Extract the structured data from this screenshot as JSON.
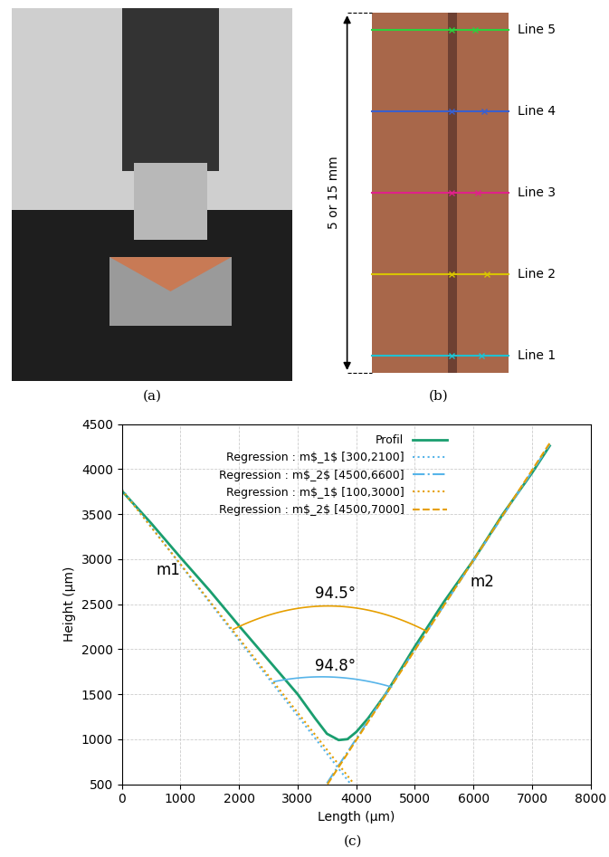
{
  "panels": {
    "a": {
      "caption": "(a)"
    },
    "b": {
      "caption": "(b)",
      "dimension": "5 or 15 mm",
      "lines": [
        {
          "label": "Line 5",
          "color": "#2bd13c"
        },
        {
          "label": "Line 4",
          "color": "#3a5fcd"
        },
        {
          "label": "Line 3",
          "color": "#e0218a"
        },
        {
          "label": "Line 2",
          "color": "#d8c400"
        },
        {
          "label": "Line 1",
          "color": "#20c0d0"
        }
      ]
    },
    "c": {
      "caption": "(c)"
    }
  },
  "chart_data": {
    "type": "line",
    "x_label": "Length (µm)",
    "y_label": "Height (µm)",
    "xlim": [
      0,
      8000
    ],
    "ylim": [
      500,
      4500
    ],
    "xticks": [
      0,
      1000,
      2000,
      3000,
      4000,
      5000,
      6000,
      7000,
      8000
    ],
    "yticks": [
      500,
      1000,
      1500,
      2000,
      2500,
      3000,
      3500,
      4000,
      4500
    ],
    "grid": true,
    "legend": "upper center",
    "series": [
      {
        "name": "Profil",
        "color": "#1a9e6f",
        "line_style": "solid",
        "x": [
          0,
          500,
          1000,
          1500,
          2000,
          2500,
          3000,
          3300,
          3500,
          3700,
          3850,
          4000,
          4200,
          4500,
          5000,
          5500,
          6000,
          6500,
          7000,
          7300
        ],
        "values": [
          3760,
          3400,
          3020,
          2650,
          2260,
          1880,
          1500,
          1230,
          1060,
          990,
          1000,
          1080,
          1230,
          1500,
          2030,
          2530,
          2990,
          3500,
          3960,
          4260
        ]
      },
      {
        "name": "Regression : m$_1$ [300,2100]",
        "color": "#56b4e9",
        "line_style": "dotted",
        "x": [
          0,
          3900
        ],
        "values": [
          3780,
          504
        ]
      },
      {
        "name": "Regression : m$_2$ [4500,6600]",
        "color": "#56b4e9",
        "line_style": "dashdot",
        "x": [
          3500,
          7300
        ],
        "values": [
          510,
          4272
        ]
      },
      {
        "name": "Regression : m$_1$ [100,3000]",
        "color": "#e69f00",
        "line_style": "dotted",
        "x": [
          0,
          3960
        ],
        "values": [
          3770,
          503
        ]
      },
      {
        "name": "Regression : m$_2$ [4500,7000]",
        "color": "#e69f00",
        "line_style": "dashed",
        "x": [
          3510,
          7300
        ],
        "values": [
          500,
          4290
        ]
      }
    ],
    "annotations": [
      {
        "text": "94.5°",
        "x": 3650,
        "y": 2620,
        "color": "#e69f00",
        "arc_from": [
          1900,
          2220
        ],
        "arc_to": [
          5200,
          2200
        ],
        "arc_peak": 2480
      },
      {
        "text": "94.8°",
        "x": 3650,
        "y": 1810,
        "color": "#56b4e9",
        "arc_from": [
          2600,
          1640
        ],
        "arc_to": [
          4600,
          1580
        ],
        "arc_peak": 1690
      },
      {
        "text": "m1",
        "x": 800,
        "y": 2880,
        "color": "#000000"
      },
      {
        "text": "m2",
        "x": 6150,
        "y": 2750,
        "color": "#000000"
      }
    ]
  }
}
